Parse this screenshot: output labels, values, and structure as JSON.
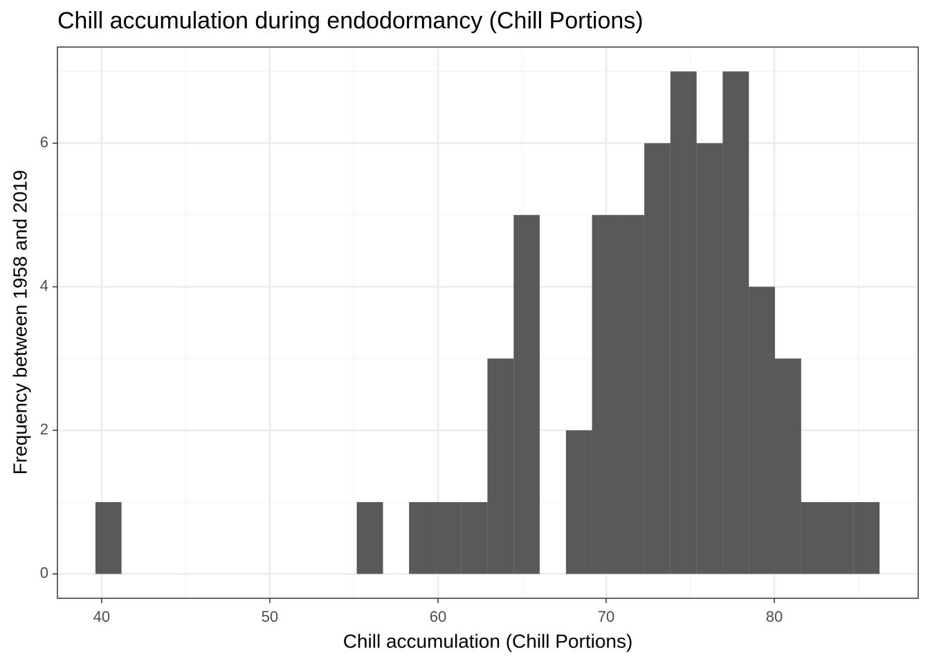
{
  "chart_data": {
    "type": "histogram",
    "title": "Chill accumulation during endodormancy (Chill Portions)",
    "x_label": "Chill accumulation (Chill Portions)",
    "y_label": "Frequency between 1958 and 2019",
    "bins": [
      39.63,
      41.18,
      42.74,
      44.29,
      45.85,
      47.4,
      48.96,
      50.51,
      52.06,
      53.62,
      55.17,
      56.73,
      58.28,
      59.84,
      61.39,
      62.94,
      64.5,
      66.05,
      67.61,
      69.16,
      70.72,
      72.27,
      73.82,
      75.38,
      76.93,
      78.49,
      80.04,
      81.6,
      83.15,
      84.7,
      86.26
    ],
    "values": [
      1,
      0,
      0,
      0,
      0,
      0,
      0,
      0,
      0,
      0,
      1,
      0,
      1,
      1,
      1,
      3,
      5,
      0,
      2,
      5,
      5,
      6,
      7,
      6,
      7,
      4,
      3,
      1,
      1,
      1
    ],
    "color": "#595959",
    "xlim": [
      37.37,
      88.56
    ],
    "xticks": [
      40,
      50,
      60,
      70,
      80
    ],
    "ylim": [
      -0.34,
      7.34
    ],
    "yticks": [
      0,
      2,
      4,
      6
    ],
    "grid": true
  }
}
